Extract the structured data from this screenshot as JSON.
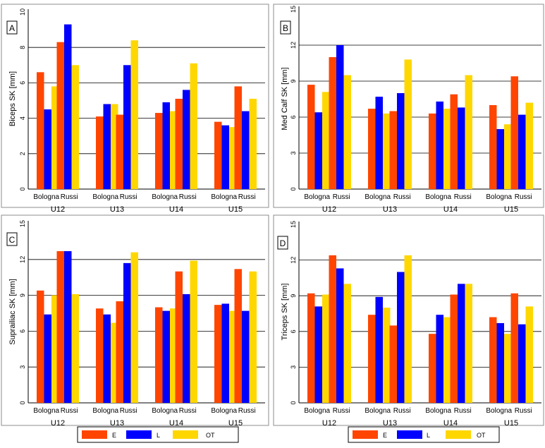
{
  "colors": {
    "E": "#ff4500",
    "L": "#0000ff",
    "OT": "#ffd700",
    "grid": "#000000",
    "axis": "#000000"
  },
  "legends": [
    {
      "items": [
        {
          "key": "E",
          "label": "E"
        },
        {
          "key": "L",
          "label": "L"
        },
        {
          "key": "OT",
          "label": "OT"
        }
      ]
    },
    {
      "items": [
        {
          "key": "E",
          "label": "E"
        },
        {
          "key": "L",
          "label": "L"
        },
        {
          "key": "OT",
          "label": "OT"
        }
      ]
    }
  ],
  "chart_data": [
    {
      "type": "bar",
      "panel_label": "A",
      "ylabel": "Biceps SK [mm]",
      "ylim": [
        0,
        10
      ],
      "yticks": [
        0,
        2,
        4,
        6,
        8,
        10
      ],
      "grid": true,
      "groups": [
        "U12",
        "U13",
        "U14",
        "U15"
      ],
      "subgroups": [
        "Bologna",
        "Russi"
      ],
      "series": [
        {
          "name": "E",
          "values": [
            [
              6.6,
              8.3
            ],
            [
              4.1,
              4.2
            ],
            [
              4.3,
              5.1
            ],
            [
              3.8,
              5.8
            ]
          ]
        },
        {
          "name": "L",
          "values": [
            [
              4.5,
              9.3
            ],
            [
              4.8,
              7.0
            ],
            [
              4.9,
              5.6
            ],
            [
              3.6,
              4.4
            ]
          ]
        },
        {
          "name": "OT",
          "values": [
            [
              5.8,
              7.0
            ],
            [
              4.8,
              8.4
            ],
            [
              4.4,
              7.1
            ],
            [
              3.5,
              5.1
            ]
          ]
        }
      ]
    },
    {
      "type": "bar",
      "panel_label": "B",
      "ylabel": "Med Calf SK [mm]",
      "ylim": [
        0,
        15
      ],
      "yticks": [
        0,
        3,
        6,
        9,
        12,
        15
      ],
      "grid": true,
      "groups": [
        "U12",
        "U13",
        "U14",
        "U15"
      ],
      "subgroups": [
        "Bologna",
        "Russi"
      ],
      "series": [
        {
          "name": "E",
          "values": [
            [
              8.7,
              11.0
            ],
            [
              6.7,
              6.5
            ],
            [
              6.3,
              7.9
            ],
            [
              7.0,
              9.4
            ]
          ]
        },
        {
          "name": "L",
          "values": [
            [
              6.4,
              12.0
            ],
            [
              7.7,
              8.0
            ],
            [
              7.3,
              6.8
            ],
            [
              5.0,
              6.2
            ]
          ]
        },
        {
          "name": "OT",
          "values": [
            [
              8.1,
              9.5
            ],
            [
              6.3,
              10.8
            ],
            [
              6.7,
              9.5
            ],
            [
              5.4,
              7.2
            ]
          ]
        }
      ]
    },
    {
      "type": "bar",
      "panel_label": "C",
      "ylabel": "Suprailiac SK [mm]",
      "ylim": [
        0,
        15
      ],
      "yticks": [
        0,
        3,
        6,
        9,
        12,
        15
      ],
      "grid": true,
      "groups": [
        "U12",
        "U13",
        "U14",
        "U15"
      ],
      "subgroups": [
        "Bologna",
        "Russi"
      ],
      "series": [
        {
          "name": "E",
          "values": [
            [
              9.4,
              12.7
            ],
            [
              7.9,
              8.5
            ],
            [
              8.0,
              11.0
            ],
            [
              8.2,
              11.2
            ]
          ]
        },
        {
          "name": "L",
          "values": [
            [
              7.4,
              12.7
            ],
            [
              7.4,
              11.7
            ],
            [
              7.7,
              9.1
            ],
            [
              8.3,
              7.7
            ]
          ]
        },
        {
          "name": "OT",
          "values": [
            [
              9.0,
              9.1
            ],
            [
              6.7,
              12.6
            ],
            [
              7.9,
              11.9
            ],
            [
              7.7,
              11.0
            ]
          ]
        }
      ]
    },
    {
      "type": "bar",
      "panel_label": "D",
      "ylabel": "Triceps SK [mm]",
      "ylim": [
        0,
        15
      ],
      "yticks": [
        0,
        3,
        6,
        9,
        12,
        15
      ],
      "grid": true,
      "groups": [
        "U12",
        "U13",
        "U14",
        "U15"
      ],
      "subgroups": [
        "Bologna",
        "Russi"
      ],
      "series": [
        {
          "name": "E",
          "values": [
            [
              9.2,
              12.4
            ],
            [
              7.4,
              6.5
            ],
            [
              5.8,
              9.1
            ],
            [
              7.2,
              9.2
            ]
          ]
        },
        {
          "name": "L",
          "values": [
            [
              8.1,
              11.3
            ],
            [
              8.9,
              11.0
            ],
            [
              7.4,
              10.0
            ],
            [
              6.7,
              6.6
            ]
          ]
        },
        {
          "name": "OT",
          "values": [
            [
              9.1,
              10.0
            ],
            [
              8.0,
              12.4
            ],
            [
              7.2,
              10.0
            ],
            [
              5.8,
              8.1
            ]
          ]
        }
      ]
    }
  ]
}
